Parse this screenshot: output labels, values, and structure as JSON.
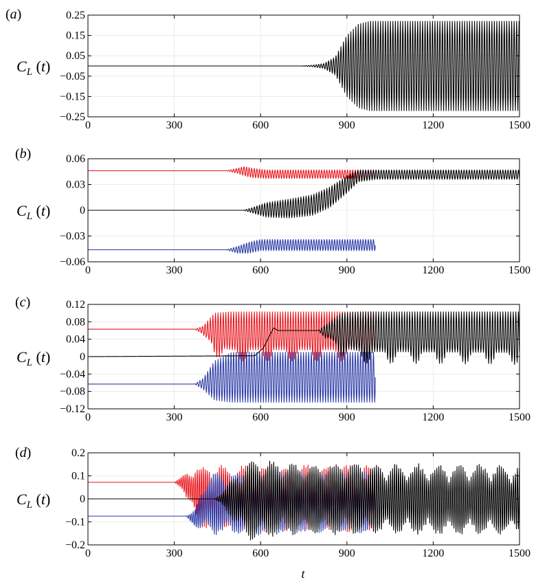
{
  "figure": {
    "xlabel": "t"
  },
  "chart_data": [
    {
      "id": "a",
      "panel_label": "(a)",
      "type": "line",
      "ylabel": "C_L (t)",
      "xlim": [
        0,
        1500
      ],
      "ylim": [
        -0.25,
        0.25
      ],
      "xticks": [
        "0",
        "300",
        "600",
        "900",
        "1200",
        "1500"
      ],
      "yticks": [
        "0.25",
        "0.15",
        "0.05",
        "-0.05",
        "-0.15",
        "-0.25"
      ],
      "grid": true,
      "series": [
        {
          "color": "#000000",
          "envelope": [
            [
              0,
              0,
              0
            ],
            [
              740,
              0,
              0
            ],
            [
              780,
              0.004,
              -0.004
            ],
            [
              820,
              0.012,
              -0.012
            ],
            [
              860,
              0.045,
              -0.045
            ],
            [
              900,
              0.15,
              -0.15
            ],
            [
              940,
              0.205,
              -0.205
            ],
            [
              980,
              0.22,
              -0.22
            ],
            [
              1500,
              0.22,
              -0.22
            ]
          ],
          "period": 8.6
        }
      ]
    },
    {
      "id": "b",
      "panel_label": "(b)",
      "type": "line",
      "ylabel": "C_L (t)",
      "xlim": [
        0,
        1500
      ],
      "ylim": [
        -0.06,
        0.06
      ],
      "xticks": [
        "0",
        "300",
        "600",
        "900",
        "1200",
        "1500"
      ],
      "yticks": [
        "0.06",
        "0.03",
        "0",
        "-0.03",
        "-0.06"
      ],
      "grid": true,
      "series": [
        {
          "color": "#e8141c",
          "envelope": [
            [
              0,
              0.046,
              0.046
            ],
            [
              480,
              0.046,
              0.046
            ],
            [
              520,
              0.049,
              0.043
            ],
            [
              545,
              0.051,
              0.04
            ],
            [
              570,
              0.049,
              0.038
            ],
            [
              620,
              0.047,
              0.037
            ],
            [
              1000,
              0.047,
              0.037
            ]
          ],
          "period": 9
        },
        {
          "color": "#000000",
          "envelope": [
            [
              0,
              0,
              0
            ],
            [
              540,
              0,
              0
            ],
            [
              570,
              0.003,
              -0.003
            ],
            [
              620,
              0.009,
              -0.008
            ],
            [
              700,
              0.013,
              -0.009
            ],
            [
              780,
              0.018,
              -0.006
            ],
            [
              840,
              0.027,
              0.003
            ],
            [
              900,
              0.04,
              0.02
            ],
            [
              940,
              0.047,
              0.033
            ],
            [
              1000,
              0.047,
              0.036
            ],
            [
              1500,
              0.047,
              0.036
            ]
          ],
          "period": 9
        },
        {
          "color": "#2b3aa6",
          "envelope": [
            [
              0,
              -0.046,
              -0.046
            ],
            [
              480,
              -0.046,
              -0.046
            ],
            [
              520,
              -0.042,
              -0.05
            ],
            [
              560,
              -0.037,
              -0.05
            ],
            [
              600,
              -0.034,
              -0.047
            ],
            [
              1000,
              -0.034,
              -0.047
            ]
          ],
          "period": 9
        }
      ]
    },
    {
      "id": "c",
      "panel_label": "(c)",
      "type": "line",
      "ylabel": "C_L (t)",
      "xlim": [
        0,
        1500
      ],
      "ylim": [
        -0.12,
        0.12
      ],
      "xticks": [
        "0",
        "300",
        "600",
        "900",
        "1200",
        "1500"
      ],
      "yticks": [
        "0.12",
        "0.08",
        "0.04",
        "0",
        "-0.04",
        "-0.08",
        "-0.12"
      ],
      "grid": true,
      "series": [
        {
          "color": "#e8141c",
          "envelope": [
            [
              0,
              0.063,
              0.063
            ],
            [
              370,
              0.063,
              0.063
            ],
            [
              400,
              0.07,
              0.052
            ],
            [
              440,
              0.1,
              0.0
            ],
            [
              500,
              0.103,
              -0.01
            ],
            [
              1000,
              0.103,
              -0.01
            ]
          ],
          "period": 9,
          "dip": true
        },
        {
          "color": "#2b3aa6",
          "envelope": [
            [
              0,
              -0.063,
              -0.063
            ],
            [
              370,
              -0.063,
              -0.063
            ],
            [
              400,
              -0.05,
              -0.075
            ],
            [
              440,
              -0.01,
              -0.1
            ],
            [
              500,
              0.01,
              -0.105
            ],
            [
              1000,
              0.01,
              -0.105
            ]
          ],
          "period": 9
        },
        {
          "color": "#000000",
          "envelope": [
            [
              0,
              0,
              0
            ],
            [
              580,
              0.002,
              0.002
            ],
            [
              610,
              0.02,
              0.02
            ],
            [
              645,
              0.066,
              0.066
            ],
            [
              660,
              0.06,
              0.06
            ],
            [
              800,
              0.06,
              0.06
            ],
            [
              830,
              0.075,
              0.04
            ],
            [
              880,
              0.1,
              0.0
            ],
            [
              950,
              0.103,
              -0.015
            ],
            [
              1500,
              0.103,
              -0.018
            ]
          ],
          "period": 9,
          "dip": true
        }
      ]
    },
    {
      "id": "d",
      "panel_label": "(d)",
      "type": "line",
      "ylabel": "C_L (t)",
      "xlim": [
        0,
        1500
      ],
      "ylim": [
        -0.2,
        0.2
      ],
      "xticks": [
        "0",
        "300",
        "600",
        "900",
        "1200",
        "1500"
      ],
      "yticks": [
        "0.2",
        "0.1",
        "0",
        "-0.1",
        "-0.2"
      ],
      "grid": true,
      "series": [
        {
          "color": "#e8141c",
          "envelope": [
            [
              0,
              0.072,
              0.072
            ],
            [
              300,
              0.072,
              0.072
            ],
            [
              330,
              0.1,
              0.04
            ],
            [
              360,
              0.14,
              -0.06
            ],
            [
              400,
              0.15,
              -0.14
            ],
            [
              1000,
              0.15,
              -0.15
            ]
          ],
          "period": 7,
          "noisy": true
        },
        {
          "color": "#2b3aa6",
          "envelope": [
            [
              0,
              -0.075,
              -0.075
            ],
            [
              340,
              -0.075,
              -0.075
            ],
            [
              370,
              -0.05,
              -0.12
            ],
            [
              420,
              0.12,
              -0.16
            ],
            [
              1000,
              0.13,
              -0.16
            ]
          ],
          "period": 7,
          "noisy": true
        },
        {
          "color": "#000000",
          "envelope": [
            [
              0,
              0,
              0
            ],
            [
              440,
              0,
              0
            ],
            [
              470,
              0.04,
              -0.04
            ],
            [
              520,
              0.12,
              -0.13
            ],
            [
              570,
              0.18,
              -0.19
            ],
            [
              700,
              0.16,
              -0.16
            ],
            [
              1500,
              0.15,
              -0.16
            ]
          ],
          "period": 7,
          "noisy": true
        }
      ]
    }
  ]
}
